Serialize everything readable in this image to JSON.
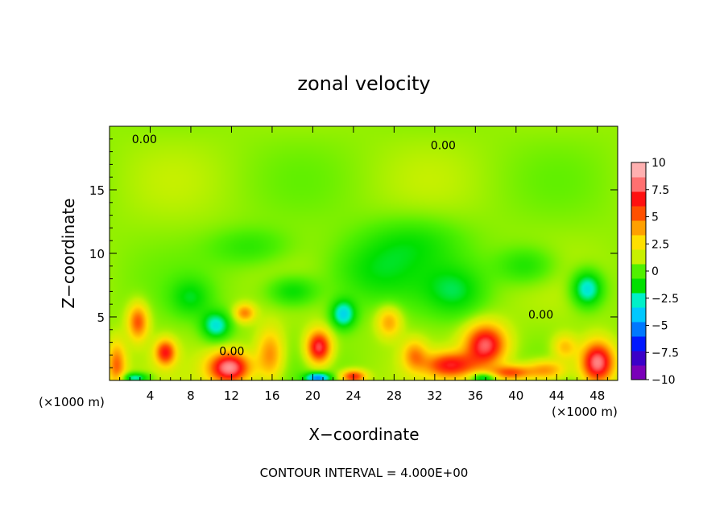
{
  "chart_data": {
    "type": "heatmap",
    "title": "zonal velocity",
    "xlabel": "X−coordinate",
    "ylabel": "Z−coordinate",
    "x_unit_label_left": "(×1000 m)",
    "x_unit_label_right": "(×1000 m)",
    "footer": "CONTOUR INTERVAL = 4.000E+00",
    "xlim": [
      0,
      50
    ],
    "ylim": [
      0,
      20
    ],
    "x_ticks": [
      4,
      8,
      12,
      16,
      20,
      24,
      28,
      32,
      36,
      40,
      44,
      48
    ],
    "x_tick_labels": [
      "4",
      "8",
      "12",
      "16",
      "20",
      "24",
      "28",
      "32",
      "36",
      "40",
      "44",
      "48"
    ],
    "y_ticks": [
      5,
      10,
      15
    ],
    "y_tick_labels": [
      "5",
      "10",
      "15"
    ],
    "colorbar": {
      "min": -10,
      "max": 10,
      "ticks": [
        10,
        7.5,
        5,
        2.5,
        0,
        -2.5,
        -5,
        -7.5,
        -10
      ],
      "tick_labels": [
        "10",
        "7.5",
        "5",
        "2.5",
        "0",
        "−2.5",
        "−5",
        "−7.5",
        "−10"
      ],
      "colors": [
        "#7a00b8",
        "#3b00c8",
        "#0018ff",
        "#0078ff",
        "#00c8ff",
        "#00f0c8",
        "#00e000",
        "#50f000",
        "#c8f000",
        "#ffe000",
        "#ffa000",
        "#ff5000",
        "#ff1010",
        "#ff7070",
        "#ffb0b0"
      ]
    },
    "contour_labels": [
      {
        "text": "0.00",
        "x": 2.2,
        "z": 19.0
      },
      {
        "text": "0.00",
        "x": 31.6,
        "z": 18.5
      },
      {
        "text": "0.00",
        "x": 41.2,
        "z": 5.2
      },
      {
        "text": "0.00",
        "x": 10.8,
        "z": 2.3
      }
    ],
    "features": [
      {
        "x": 11.8,
        "z": 1.0,
        "v": 8.5,
        "sx": 2.0,
        "sz": 1.2
      },
      {
        "x": 20.6,
        "z": 2.6,
        "v": 7.5,
        "sx": 1.2,
        "sz": 1.3
      },
      {
        "x": 37.0,
        "z": 2.8,
        "v": 7.5,
        "sx": 2.0,
        "sz": 1.6
      },
      {
        "x": 48.0,
        "z": 1.4,
        "v": 8.5,
        "sx": 1.6,
        "sz": 1.6
      },
      {
        "x": 33.5,
        "z": 1.2,
        "v": 6.0,
        "sx": 2.5,
        "sz": 1.0
      },
      {
        "x": 5.5,
        "z": 2.2,
        "v": 6.0,
        "sx": 1.0,
        "sz": 1.0
      },
      {
        "x": 2.8,
        "z": 4.6,
        "v": 5.0,
        "sx": 1.0,
        "sz": 1.4
      },
      {
        "x": 0.7,
        "z": 1.2,
        "v": 4.5,
        "sx": 0.9,
        "sz": 1.8
      },
      {
        "x": 15.8,
        "z": 2.0,
        "v": 4.0,
        "sx": 1.3,
        "sz": 2.0
      },
      {
        "x": 13.3,
        "z": 5.3,
        "v": 4.0,
        "sx": 1.0,
        "sz": 0.7
      },
      {
        "x": 27.5,
        "z": 4.6,
        "v": 3.5,
        "sx": 1.2,
        "sz": 1.2
      },
      {
        "x": 39.5,
        "z": 0.6,
        "v": 5.0,
        "sx": 2.0,
        "sz": 0.6
      },
      {
        "x": 43.0,
        "z": 0.8,
        "v": 4.0,
        "sx": 2.0,
        "sz": 0.8
      },
      {
        "x": 24.0,
        "z": 0.3,
        "v": 6.0,
        "sx": 1.2,
        "sz": 0.5
      },
      {
        "x": 30.0,
        "z": 2.0,
        "v": 3.5,
        "sx": 1.2,
        "sz": 1.2
      },
      {
        "x": 44.8,
        "z": 2.6,
        "v": 3.0,
        "sx": 1.2,
        "sz": 1.0
      },
      {
        "x": 10.5,
        "z": 4.3,
        "v": -4.0,
        "sx": 1.4,
        "sz": 1.1
      },
      {
        "x": 23.0,
        "z": 5.2,
        "v": -4.5,
        "sx": 1.2,
        "sz": 1.1
      },
      {
        "x": 47.0,
        "z": 7.2,
        "v": -4.5,
        "sx": 1.5,
        "sz": 1.4
      },
      {
        "x": 2.5,
        "z": 0.2,
        "v": -4.0,
        "sx": 1.4,
        "sz": 0.4
      },
      {
        "x": 20.5,
        "z": 0.2,
        "v": -6.0,
        "sx": 1.2,
        "sz": 0.4
      },
      {
        "x": 36.8,
        "z": 0.2,
        "v": -4.0,
        "sx": 1.2,
        "sz": 0.4
      },
      {
        "x": 18.0,
        "z": 7.0,
        "v": -2.5,
        "sx": 2.5,
        "sz": 1.2
      },
      {
        "x": 26.0,
        "z": 8.5,
        "v": -2.0,
        "sx": 5.0,
        "sz": 2.5
      },
      {
        "x": 34.0,
        "z": 7.0,
        "v": -2.2,
        "sx": 3.0,
        "sz": 2.0
      },
      {
        "x": 41.0,
        "z": 9.0,
        "v": -2.0,
        "sx": 3.0,
        "sz": 1.5
      },
      {
        "x": 8.0,
        "z": 6.5,
        "v": -2.0,
        "sx": 2.0,
        "sz": 1.5
      },
      {
        "x": 14.0,
        "z": 10.5,
        "v": -1.5,
        "sx": 4.0,
        "sz": 1.5
      },
      {
        "x": 30.0,
        "z": 11.0,
        "v": -1.5,
        "sx": 5.0,
        "sz": 2.0
      }
    ]
  }
}
